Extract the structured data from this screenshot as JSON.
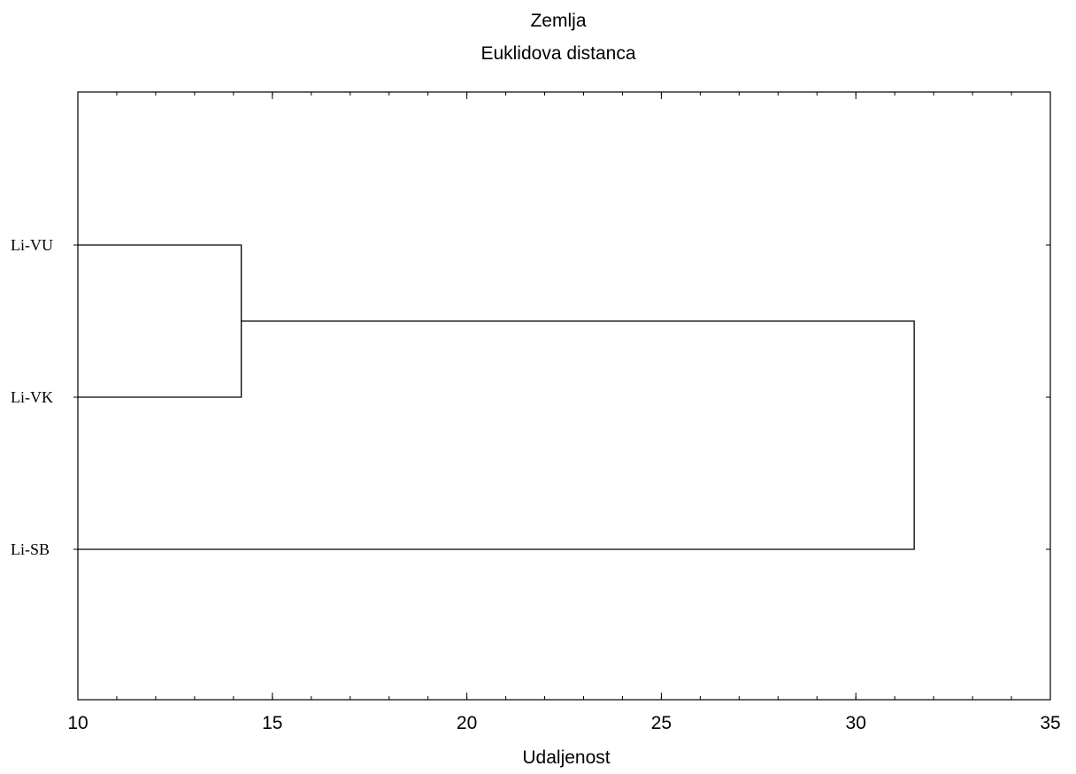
{
  "chart_data": {
    "type": "dendrogram",
    "title": "Zemlja",
    "subtitle": "Euklidova distanca",
    "xlabel": "Udaljenost",
    "ylabel": "",
    "xlim": [
      10,
      35
    ],
    "x_ticks": [
      10,
      15,
      20,
      25,
      30,
      35
    ],
    "x_minor_tick_step": 1,
    "grid": false,
    "leaves": [
      "Li-VU",
      "Li-VK",
      "Li-SB"
    ],
    "merges": [
      {
        "left": "Li-VU",
        "right": "Li-VK",
        "distance": 14.2
      },
      {
        "left": "Li-VU+Li-VK",
        "right": "Li-SB",
        "distance": 31.5
      }
    ],
    "line_color": "#000000"
  }
}
